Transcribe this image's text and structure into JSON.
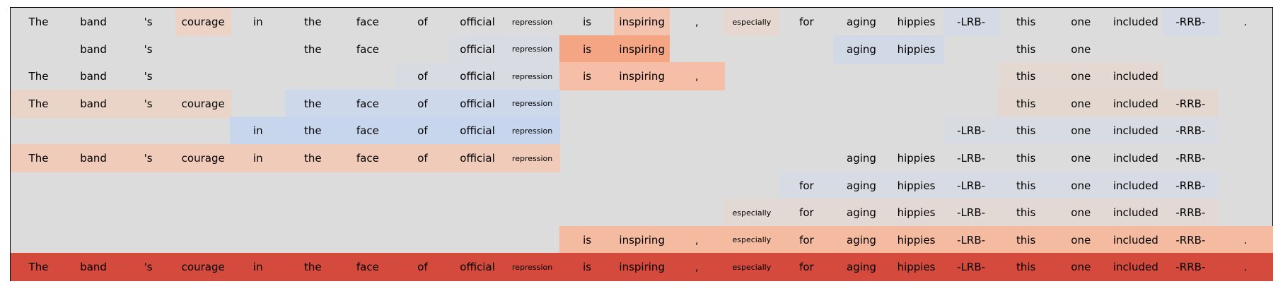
{
  "columns": 23,
  "rows": [
    {
      "tokens": [
        "The",
        "band",
        "'s",
        "courage",
        "in",
        "the",
        "face",
        "of",
        "official",
        "repression",
        "is",
        "inspiring",
        ",",
        "especially",
        "for",
        "aging",
        "hippies",
        "-LRB-",
        "this",
        "one",
        "included",
        "-RRB-",
        "."
      ],
      "colors": [
        "",
        "",
        "",
        "#ecd3c5",
        "",
        "",
        "",
        "",
        "",
        "",
        "",
        "#f3c3ad",
        "",
        "#e6d8d0",
        "",
        "",
        "",
        "#d5dbe6",
        "",
        "",
        "",
        "#d5dbe6",
        ""
      ]
    },
    {
      "tokens": [
        "",
        "band",
        "'s",
        "",
        "",
        "the",
        "face",
        "",
        "official",
        "repression",
        "is",
        "inspiring",
        "",
        "",
        "",
        "aging",
        "hippies",
        "",
        "this",
        "one",
        "",
        "",
        ""
      ],
      "colors": [
        "",
        "",
        "",
        "",
        "",
        "",
        "",
        "",
        "#d9dbe2",
        "#d9dbe2",
        "#f3a584",
        "#f3a584",
        "",
        "",
        "",
        "#d1d9e7",
        "#d1d9e7",
        "",
        "",
        "",
        "",
        "",
        ""
      ]
    },
    {
      "tokens": [
        "The",
        "band",
        "'s",
        "",
        "",
        "",
        "",
        "of",
        "official",
        "repression",
        "is",
        "inspiring",
        ",",
        "",
        "",
        "",
        "",
        "",
        "this",
        "one",
        "included",
        "",
        ""
      ],
      "colors": [
        "",
        "",
        "",
        "",
        "",
        "",
        "",
        "#d8dbe2",
        "#d8dbe2",
        "#d8dbe2",
        "#f6bea7",
        "#f6bea7",
        "#f6bea7",
        "",
        "",
        "",
        "",
        "",
        "#e3d8d2",
        "#e3d8d2",
        "#e3d8d2",
        "",
        ""
      ]
    },
    {
      "tokens": [
        "The",
        "band",
        "'s",
        "courage",
        "",
        "the",
        "face",
        "of",
        "official",
        "repression",
        "",
        "",
        "",
        "",
        "",
        "",
        "",
        "",
        "this",
        "one",
        "included",
        "-RRB-",
        ""
      ],
      "colors": [
        "#ead4c8",
        "#ead4c8",
        "#ead4c8",
        "#ead4c8",
        "",
        "#cdd8ea",
        "#cdd8ea",
        "#cdd8ea",
        "#cdd8ea",
        "#cdd8ea",
        "",
        "",
        "",
        "",
        "",
        "",
        "",
        "",
        "#e4d7d0",
        "#e4d7d0",
        "#e4d7d0",
        "#e4d7d0",
        ""
      ]
    },
    {
      "tokens": [
        "",
        "",
        "",
        "",
        "in",
        "the",
        "face",
        "of",
        "official",
        "repression",
        "",
        "",
        "",
        "",
        "",
        "",
        "",
        "-LRB-",
        "this",
        "one",
        "included",
        "-RRB-",
        ""
      ],
      "colors": [
        "",
        "",
        "",
        "",
        "#c8d6ed",
        "#c8d6ed",
        "#c8d6ed",
        "#c8d6ed",
        "#c8d6ed",
        "#c8d6ed",
        "",
        "",
        "",
        "",
        "",
        "",
        "",
        "#d8dbe1",
        "#d8dbe1",
        "#d8dbe1",
        "#d8dbe1",
        "#d8dbe1",
        ""
      ]
    },
    {
      "tokens": [
        "The",
        "band",
        "'s",
        "courage",
        "in",
        "the",
        "face",
        "of",
        "official",
        "repression",
        "",
        "",
        "",
        "",
        "",
        "aging",
        "hippies",
        "-LRB-",
        "this",
        "one",
        "included",
        "-RRB-",
        ""
      ],
      "colors": [
        "#f1cbb9",
        "#f1cbb9",
        "#f1cbb9",
        "#f1cbb9",
        "#f1cbb9",
        "#f1cbb9",
        "#f1cbb9",
        "#f1cbb9",
        "#f1cbb9",
        "#f1cbb9",
        "",
        "",
        "",
        "",
        "",
        "",
        "",
        "",
        "",
        "",
        "",
        "",
        ""
      ]
    },
    {
      "tokens": [
        "",
        "",
        "",
        "",
        "",
        "",
        "",
        "",
        "",
        "",
        "",
        "",
        "",
        "",
        "for",
        "aging",
        "hippies",
        "-LRB-",
        "this",
        "one",
        "included",
        "-RRB-",
        ""
      ],
      "colors": [
        "",
        "",
        "",
        "",
        "",
        "",
        "",
        "",
        "",
        "",
        "",
        "",
        "",
        "",
        "#d7dbe3",
        "#d7dbe3",
        "#d7dbe3",
        "#d7dbe3",
        "#d7dbe3",
        "#d7dbe3",
        "#d7dbe3",
        "#d7dbe3",
        ""
      ]
    },
    {
      "tokens": [
        "",
        "",
        "",
        "",
        "",
        "",
        "",
        "",
        "",
        "",
        "",
        "",
        "",
        "especially",
        "for",
        "aging",
        "hippies",
        "-LRB-",
        "this",
        "one",
        "included",
        "-RRB-",
        ""
      ],
      "colors": [
        "",
        "",
        "",
        "",
        "",
        "",
        "",
        "",
        "",
        "",
        "",
        "",
        "",
        "#e2d9d4",
        "#e2d9d4",
        "#e2d9d4",
        "#e2d9d4",
        "#e2d9d4",
        "#e2d9d4",
        "#e2d9d4",
        "#e2d9d4",
        "#e2d9d4",
        ""
      ]
    },
    {
      "tokens": [
        "",
        "",
        "",
        "",
        "",
        "",
        "",
        "",
        "",
        "",
        "is",
        "inspiring",
        ",",
        "especially",
        "for",
        "aging",
        "hippies",
        "-LRB-",
        "this",
        "one",
        "included",
        "-RRB-",
        "."
      ],
      "colors": [
        "",
        "",
        "",
        "",
        "",
        "",
        "",
        "",
        "",
        "",
        "#f5bba1",
        "#f5bba1",
        "#f5bba1",
        "#f5bba1",
        "#f5bba1",
        "#f5bba1",
        "#f5bba1",
        "#f5bba1",
        "#f5bba1",
        "#f5bba1",
        "#f5bba1",
        "#f5bba1",
        "#f5bba1"
      ]
    },
    {
      "tokens": [
        "The",
        "band",
        "'s",
        "courage",
        "in",
        "the",
        "face",
        "of",
        "official",
        "repression",
        "is",
        "inspiring",
        ",",
        "especially",
        "for",
        "aging",
        "hippies",
        "-LRB-",
        "this",
        "one",
        "included",
        "-RRB-",
        "."
      ],
      "colors": [
        "#d44a3d",
        "#d44a3d",
        "#d44a3d",
        "#d44a3d",
        "#d44a3d",
        "#d44a3d",
        "#d44a3d",
        "#d44a3d",
        "#d44a3d",
        "#d44a3d",
        "#d44a3d",
        "#d44a3d",
        "#d44a3d",
        "#d44a3d",
        "#d44a3d",
        "#d44a3d",
        "#d44a3d",
        "#d44a3d",
        "#d44a3d",
        "#d44a3d",
        "#d44a3d",
        "#d44a3d",
        "#d44a3d"
      ]
    }
  ]
}
